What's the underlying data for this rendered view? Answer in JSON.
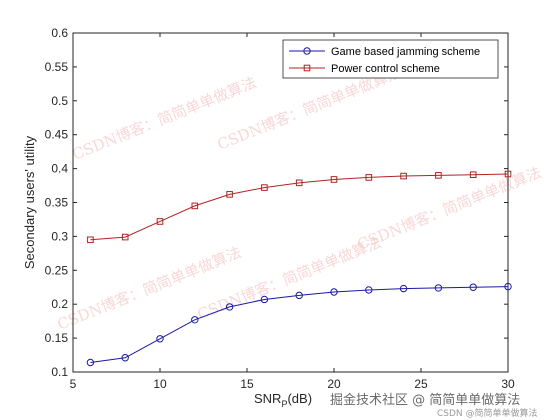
{
  "chart_data": {
    "type": "line",
    "xlabel_main": "SNR",
    "xlabel_sub": "P",
    "xlabel_tail": "(dB)",
    "ylabel": "Secondary users' utility",
    "xlim": [
      5,
      30
    ],
    "ylim": [
      0.1,
      0.6
    ],
    "xticks": [
      5,
      10,
      15,
      20,
      25,
      30
    ],
    "yticks": [
      0.1,
      0.15,
      0.2,
      0.25,
      0.3,
      0.35,
      0.4,
      0.45,
      0.5,
      0.55,
      0.6
    ],
    "grid": false,
    "legend_position": "top-right",
    "series": [
      {
        "name": "Game based jamming scheme",
        "color": "#1a1aa6",
        "marker": "circle",
        "x": [
          6,
          8,
          10,
          12,
          14,
          16,
          18,
          20,
          22,
          24,
          26,
          28,
          30
        ],
        "y": [
          0.114,
          0.121,
          0.149,
          0.177,
          0.196,
          0.207,
          0.213,
          0.218,
          0.221,
          0.223,
          0.224,
          0.225,
          0.226
        ]
      },
      {
        "name": "Power control scheme",
        "color": "#b22222",
        "marker": "square",
        "x": [
          6,
          8,
          10,
          12,
          14,
          16,
          18,
          20,
          22,
          24,
          26,
          28,
          30
        ],
        "y": [
          0.295,
          0.299,
          0.322,
          0.345,
          0.362,
          0.372,
          0.379,
          0.384,
          0.387,
          0.389,
          0.39,
          0.391,
          0.392
        ]
      }
    ]
  },
  "watermarks": [
    "CSDN博客：简简单单做算法",
    "CSDN博客：简简单单做算法",
    "CSDN博客：简简单单做算法",
    "CSDN博客：简简单单做算法",
    "CSDN博客：简简单单做算法"
  ],
  "footer": {
    "text": "掘金技术社区 @ 简简单单做算法",
    "sub": "CSDN @简简单单做算法"
  }
}
